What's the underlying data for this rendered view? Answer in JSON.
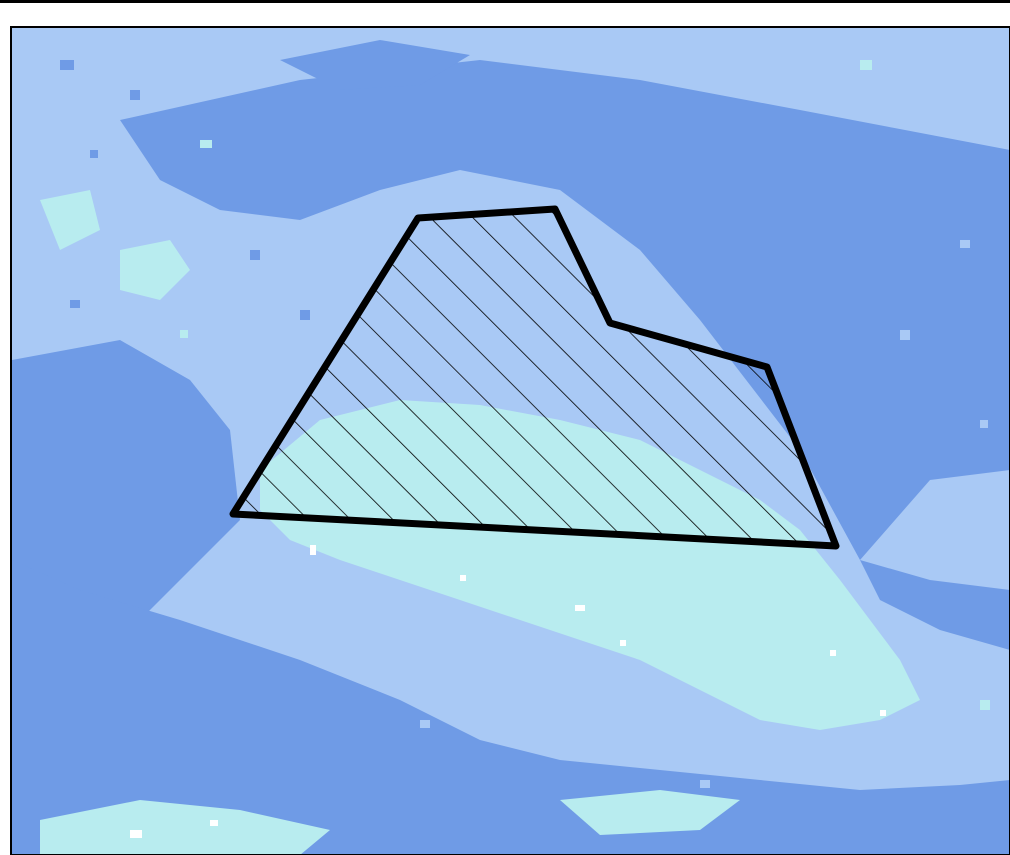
{
  "map": {
    "colors": {
      "deep": "#6f9be6",
      "mid": "#a9c9f5",
      "light": "#b8ecef",
      "speck": "#ffffff",
      "outline": "#000000"
    },
    "classes": [
      "deep",
      "mid",
      "light"
    ],
    "study_area": {
      "fill_pattern": "diagonal-hatch",
      "outline_color": "#000000"
    }
  }
}
